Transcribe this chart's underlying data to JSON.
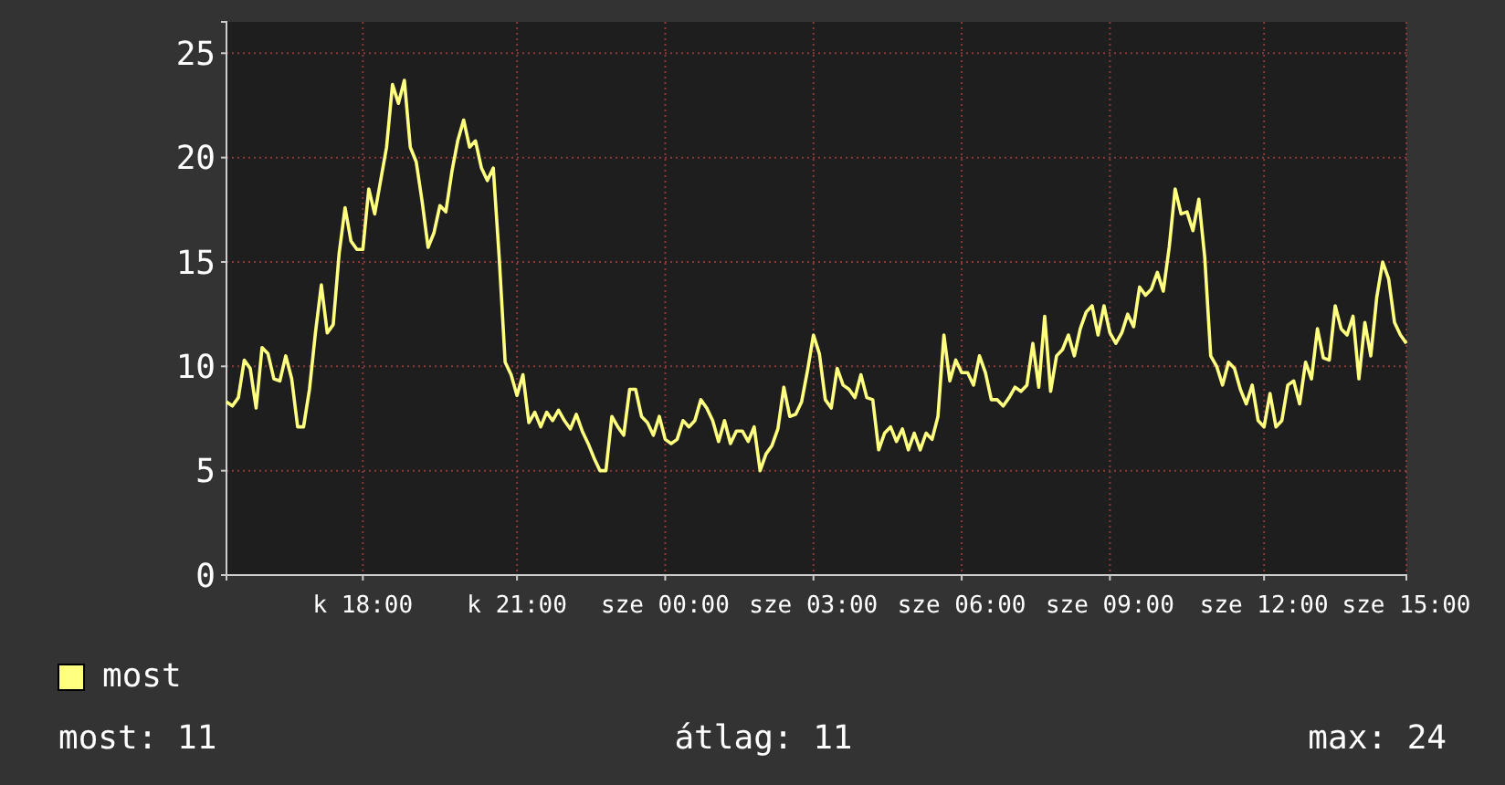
{
  "chart_data": {
    "type": "line",
    "legend": "bottom left",
    "grid": true,
    "marker": "none",
    "line_style": "solid",
    "ylim": [
      0,
      26.5
    ],
    "yticks": [
      0,
      5,
      10,
      15,
      20,
      25
    ],
    "categories": [
      null,
      null,
      null,
      null,
      null,
      null,
      null,
      null,
      null,
      null,
      null,
      null,
      null,
      null,
      null,
      null,
      null,
      null,
      null,
      null,
      null,
      null,
      null,
      "k 18:00",
      null,
      null,
      null,
      null,
      null,
      null,
      null,
      null,
      null,
      null,
      null,
      null,
      null,
      null,
      null,
      null,
      null,
      null,
      null,
      null,
      null,
      null,
      null,
      null,
      null,
      "k 21:00",
      null,
      null,
      null,
      null,
      null,
      null,
      null,
      null,
      null,
      null,
      null,
      null,
      null,
      null,
      null,
      null,
      null,
      null,
      null,
      null,
      null,
      null,
      null,
      null,
      "sze 00:00",
      null,
      null,
      null,
      null,
      null,
      null,
      null,
      null,
      null,
      null,
      null,
      null,
      null,
      null,
      null,
      null,
      null,
      null,
      null,
      null,
      null,
      null,
      null,
      null,
      "sze 03:00",
      null,
      null,
      null,
      null,
      null,
      null,
      null,
      null,
      null,
      null,
      null,
      null,
      null,
      null,
      null,
      null,
      null,
      null,
      null,
      null,
      null,
      null,
      null,
      null,
      "sze 06:00",
      null,
      null,
      null,
      null,
      null,
      null,
      null,
      null,
      null,
      null,
      null,
      null,
      null,
      null,
      null,
      null,
      null,
      null,
      null,
      null,
      null,
      null,
      null,
      null,
      "sze 09:00",
      null,
      null,
      null,
      null,
      null,
      null,
      null,
      null,
      null,
      null,
      null,
      null,
      null,
      null,
      null,
      null,
      null,
      null,
      null,
      null,
      null,
      null,
      null,
      null,
      null,
      "sze 12:00",
      null,
      null,
      null,
      null,
      null,
      null,
      null,
      null,
      null,
      null,
      null,
      null,
      null,
      null,
      null,
      null,
      null,
      null,
      null,
      null,
      null,
      null,
      null,
      "sze 15:00"
    ],
    "annotations": [
      "most: 11",
      "átlag: 11",
      "max: 24"
    ],
    "series": [
      {
        "name": "most",
        "color": "#ffff80",
        "values": [
          8.3,
          8.1,
          8.5,
          10.3,
          9.9,
          8,
          10.9,
          10.6,
          9.4,
          9.3,
          10.5,
          9.4,
          7.1,
          7.1,
          8.9,
          11.6,
          13.9,
          11.6,
          12,
          15.4,
          17.6,
          16,
          15.6,
          15.6,
          18.5,
          17.3,
          18.9,
          20.5,
          23.5,
          22.6,
          23.7,
          20.5,
          19.8,
          17.9,
          15.7,
          16.4,
          17.7,
          17.4,
          19.3,
          20.8,
          21.8,
          20.5,
          20.8,
          19.5,
          18.9,
          19.5,
          15.2,
          10.2,
          9.6,
          8.6,
          9.6,
          7.3,
          7.8,
          7.1,
          7.8,
          7.4,
          7.9,
          7.4,
          7,
          7.7,
          6.9,
          6.3,
          5.6,
          5,
          5,
          7.6,
          7.1,
          6.7,
          8.9,
          8.9,
          7.6,
          7.3,
          6.7,
          7.6,
          6.5,
          6.3,
          6.5,
          7.4,
          7.1,
          7.4,
          8.4,
          8,
          7.4,
          6.4,
          7.4,
          6.3,
          6.9,
          6.9,
          6.4,
          7.1,
          5,
          5.8,
          6.2,
          7,
          9,
          7.6,
          7.7,
          8.3,
          9.8,
          11.5,
          10.6,
          8.4,
          8,
          9.9,
          9.1,
          8.9,
          8.5,
          9.6,
          8.5,
          8.4,
          6,
          6.8,
          7.1,
          6.4,
          7,
          6,
          6.8,
          6,
          6.8,
          6.5,
          7.6,
          11.5,
          9.3,
          10.3,
          9.7,
          9.7,
          9.1,
          10.5,
          9.7,
          8.4,
          8.4,
          8.1,
          8.5,
          9,
          8.8,
          9.1,
          11.1,
          9,
          12.4,
          8.8,
          10.5,
          10.8,
          11.5,
          10.5,
          11.8,
          12.6,
          12.9,
          11.5,
          12.9,
          11.6,
          11.1,
          11.6,
          12.5,
          11.9,
          13.8,
          13.4,
          13.7,
          14.5,
          13.6,
          15.7,
          18.5,
          17.3,
          17.4,
          16.5,
          18,
          15.2,
          10.5,
          10,
          9.1,
          10.2,
          9.9,
          8.9,
          8.2,
          9.1,
          7.4,
          7.1,
          8.7,
          7.1,
          7.4,
          9.1,
          9.3,
          8.2,
          10.2,
          9.4,
          11.8,
          10.4,
          10.3,
          12.9,
          11.8,
          11.5,
          12.4,
          9.4,
          12.1,
          10.5,
          13.3,
          15,
          14.2,
          12.1,
          11.5,
          11.1
        ]
      }
    ]
  }
}
